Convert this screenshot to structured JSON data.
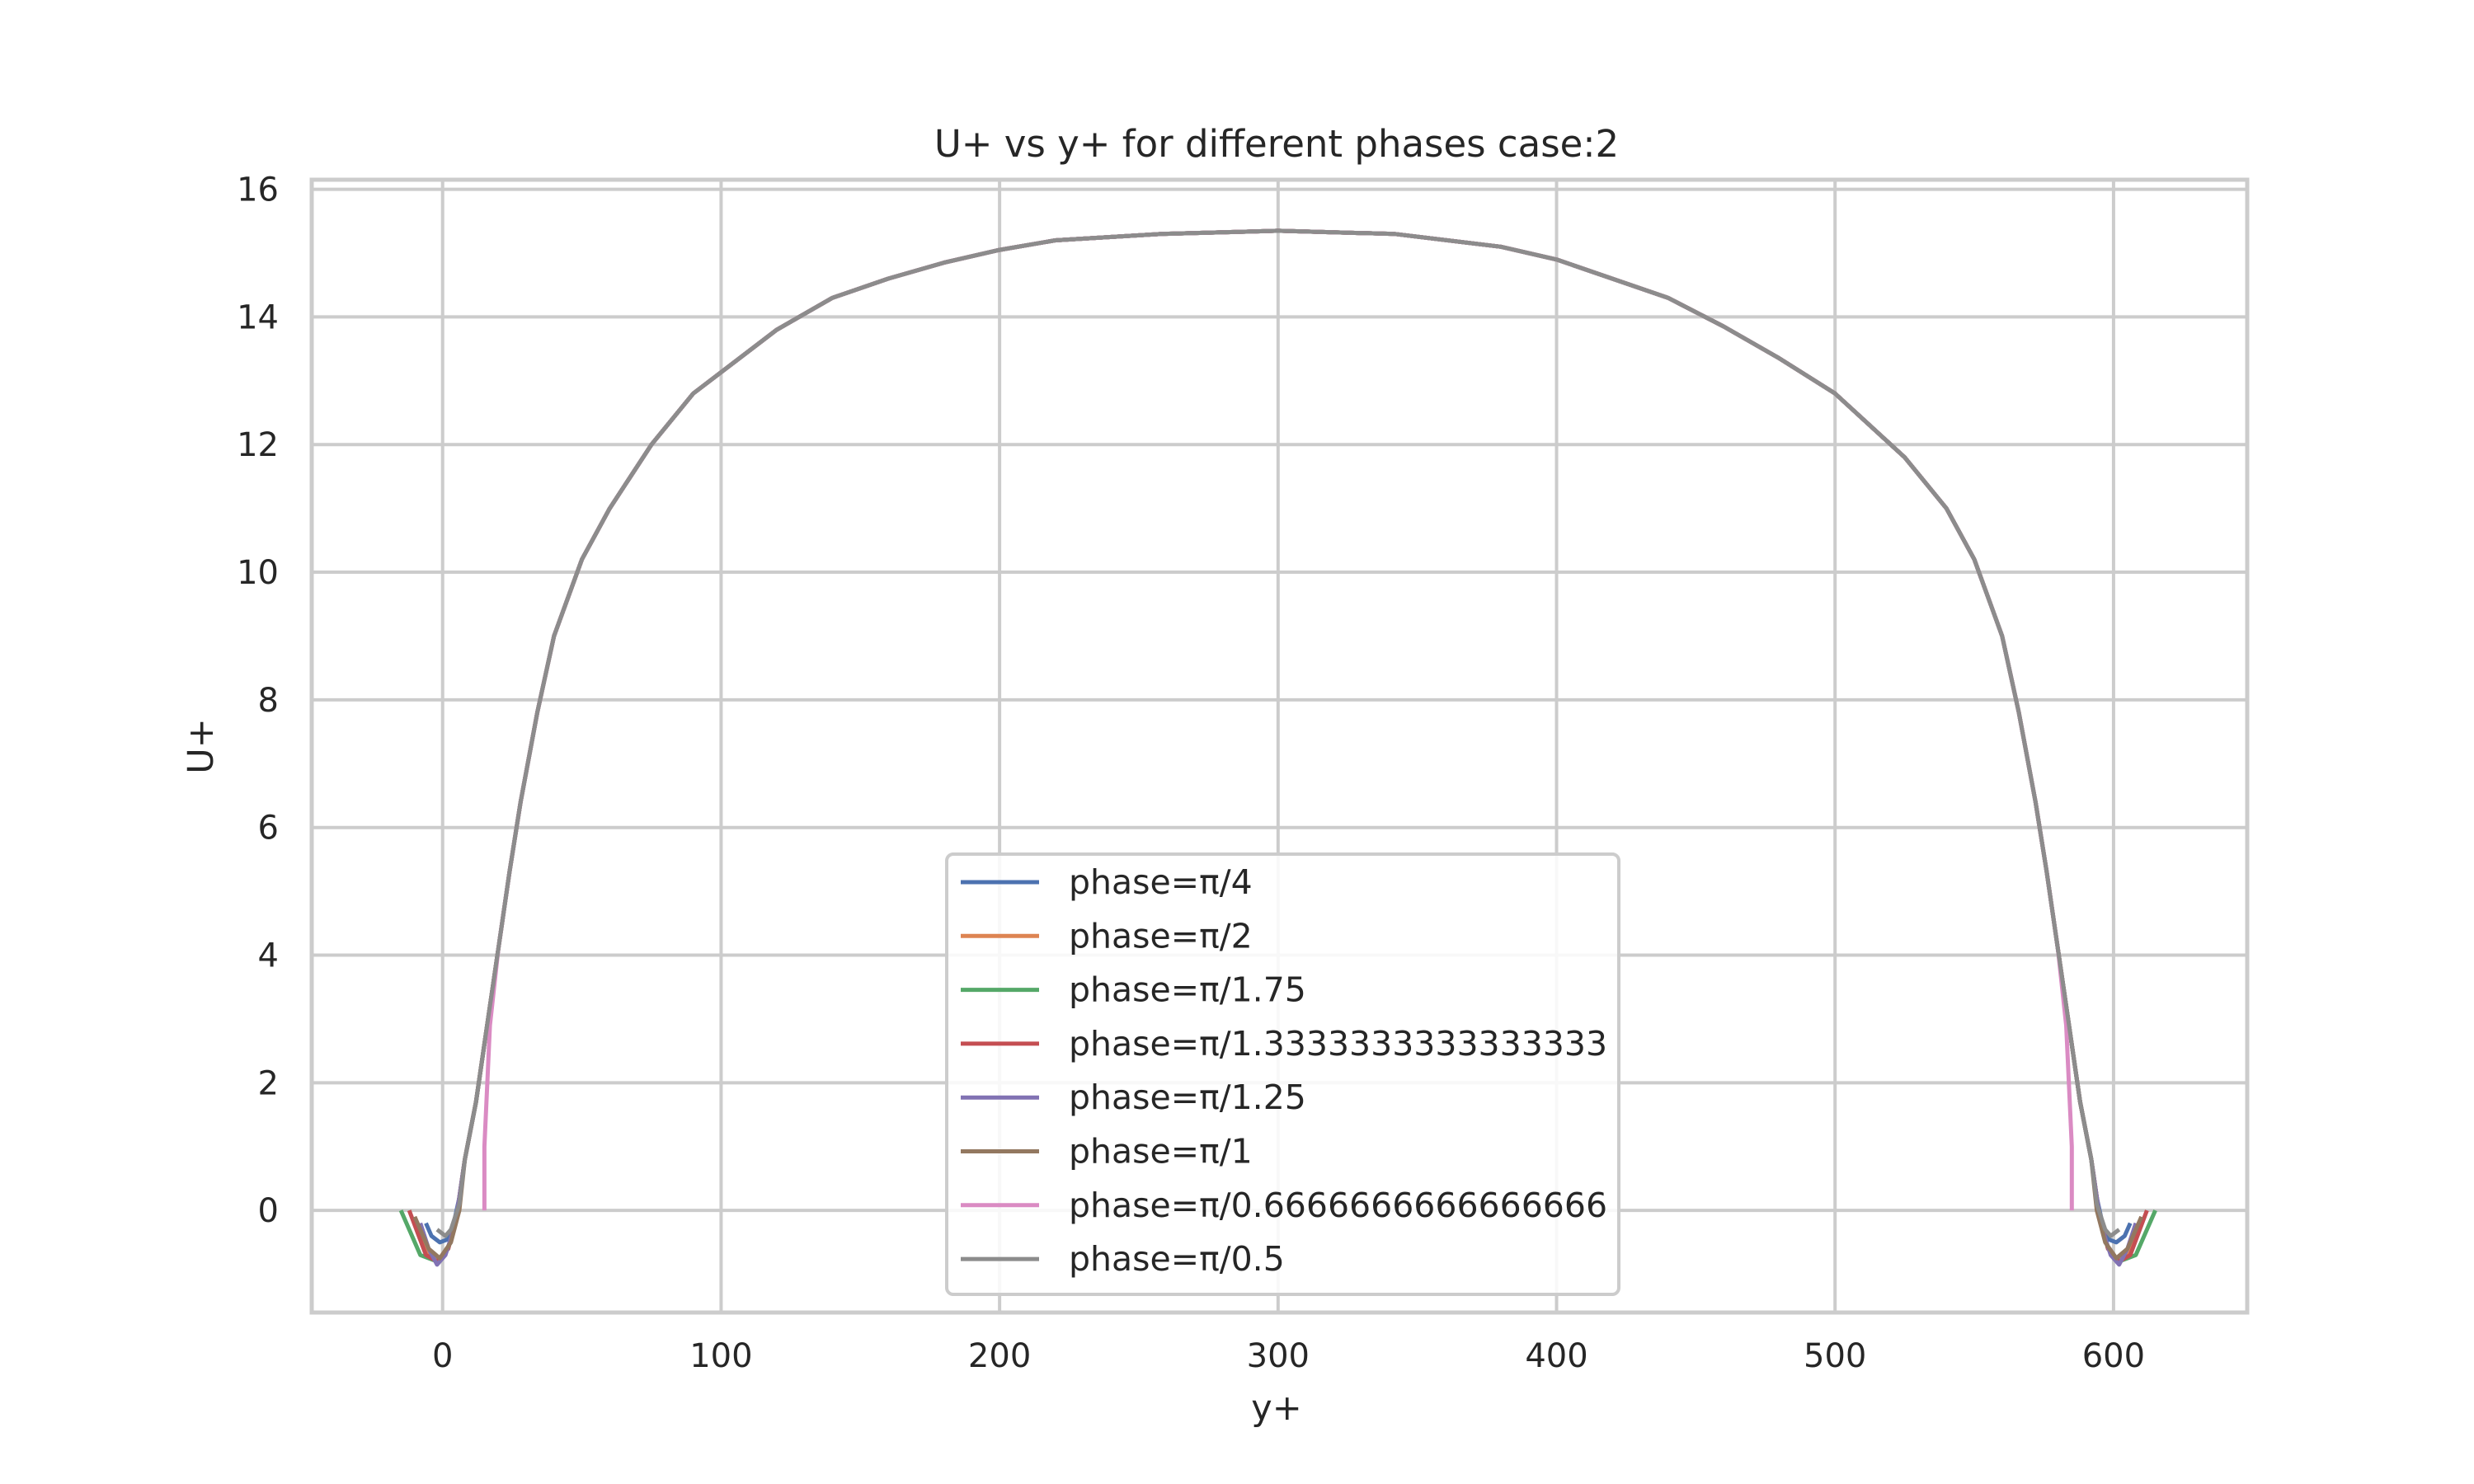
{
  "chart_data": {
    "type": "line",
    "title": "U+ vs y+ for different phases case:2",
    "xlabel": "y+",
    "ylabel": "U+",
    "xlim": [
      -47,
      648
    ],
    "ylim": [
      -1.6,
      16.15
    ],
    "xticks": [
      0,
      100,
      200,
      300,
      400,
      500,
      600
    ],
    "yticks": [
      0,
      2,
      4,
      6,
      8,
      10,
      12,
      14,
      16
    ],
    "grid": true,
    "legend": "lower-center",
    "core_profile": {
      "x": [
        8,
        12,
        16,
        20,
        24,
        28,
        34,
        40,
        50,
        60,
        75,
        90,
        105,
        120,
        140,
        160,
        180,
        200,
        220,
        258,
        300,
        342,
        380,
        400,
        420,
        440,
        460,
        480,
        500,
        525,
        540,
        550,
        560,
        566,
        572,
        576,
        580,
        584,
        588,
        592
      ],
      "y": [
        0.8,
        1.7,
        2.9,
        4.1,
        5.3,
        6.4,
        7.8,
        9.0,
        10.2,
        11.0,
        12.0,
        12.8,
        13.3,
        13.8,
        14.3,
        14.6,
        14.85,
        15.05,
        15.2,
        15.3,
        15.35,
        15.3,
        15.1,
        14.9,
        14.6,
        14.3,
        13.85,
        13.35,
        12.8,
        11.8,
        11.0,
        10.2,
        9.0,
        7.8,
        6.4,
        5.3,
        4.1,
        2.9,
        1.7,
        0.8
      ]
    },
    "series": [
      {
        "name": "phase=π/4",
        "color": "#4c72b0",
        "left_x": [
          -6,
          -4,
          -1,
          2,
          4,
          6,
          8
        ],
        "left_y": [
          -0.2,
          -0.4,
          -0.5,
          -0.45,
          -0.2,
          0.2,
          0.8
        ],
        "right_x": [
          592,
          594,
          596,
          598,
          601,
          604,
          606
        ],
        "right_y": [
          0.8,
          0.2,
          -0.2,
          -0.45,
          -0.5,
          -0.4,
          -0.2
        ]
      },
      {
        "name": "phase=π/2",
        "color": "#dd8452",
        "left_x": [
          -10,
          -6,
          -2,
          2,
          5,
          8
        ],
        "left_y": [
          -0.1,
          -0.6,
          -0.8,
          -0.6,
          -0.1,
          0.8
        ],
        "right_x": [
          592,
          595,
          598,
          602,
          606,
          610
        ],
        "right_y": [
          0.8,
          -0.1,
          -0.6,
          -0.8,
          -0.6,
          -0.1
        ]
      },
      {
        "name": "phase=π/1.75",
        "color": "#55a868",
        "left_x": [
          -15,
          -8,
          -2,
          2,
          5,
          8
        ],
        "left_y": [
          0.0,
          -0.7,
          -0.8,
          -0.6,
          -0.1,
          0.8
        ],
        "right_x": [
          592,
          595,
          598,
          602,
          608,
          615
        ],
        "right_y": [
          0.8,
          -0.1,
          -0.6,
          -0.8,
          -0.7,
          0.0
        ]
      },
      {
        "name": "phase=π/1.3333333333333333",
        "color": "#c44e52",
        "left_x": [
          -12,
          -6,
          -2,
          2,
          5,
          8
        ],
        "left_y": [
          0.0,
          -0.7,
          -0.8,
          -0.6,
          -0.1,
          0.8
        ],
        "right_x": [
          592,
          595,
          598,
          602,
          606,
          612
        ],
        "right_y": [
          0.8,
          -0.1,
          -0.6,
          -0.8,
          -0.7,
          0.0
        ]
      },
      {
        "name": "phase=π/1.25",
        "color": "#8172b3",
        "left_x": [
          -8,
          -5,
          -2,
          1,
          4,
          6,
          8
        ],
        "left_y": [
          -0.2,
          -0.6,
          -0.85,
          -0.7,
          -0.3,
          0.2,
          0.8
        ],
        "right_x": [
          592,
          594,
          596,
          599,
          602,
          605,
          608
        ],
        "right_y": [
          0.8,
          0.2,
          -0.3,
          -0.7,
          -0.85,
          -0.6,
          -0.2
        ]
      },
      {
        "name": "phase=π/1",
        "color": "#937860",
        "left_x": [
          -10,
          -5,
          -1,
          3,
          6,
          8
        ],
        "left_y": [
          -0.1,
          -0.6,
          -0.75,
          -0.5,
          0.0,
          0.8
        ],
        "right_x": [
          592,
          594,
          597,
          601,
          605,
          610
        ],
        "right_y": [
          0.8,
          0.0,
          -0.5,
          -0.75,
          -0.6,
          -0.1
        ]
      },
      {
        "name": "phase=π/0.6666666666666666",
        "color": "#da8bc3",
        "left_x": [
          15,
          15,
          17,
          20
        ],
        "left_y": [
          0.0,
          1.0,
          2.9,
          4.1
        ],
        "right_x": [
          580,
          583,
          585,
          585
        ],
        "right_y": [
          4.1,
          2.9,
          1.0,
          0.0
        ]
      },
      {
        "name": "phase=π/0.5",
        "color": "#8c8c8c",
        "left_x": [
          -2,
          1,
          3,
          6,
          8
        ],
        "left_y": [
          -0.3,
          -0.4,
          -0.3,
          0.1,
          0.8
        ],
        "right_x": [
          592,
          594,
          597,
          599,
          602
        ],
        "right_y": [
          0.8,
          0.1,
          -0.3,
          -0.4,
          -0.3
        ]
      }
    ]
  }
}
